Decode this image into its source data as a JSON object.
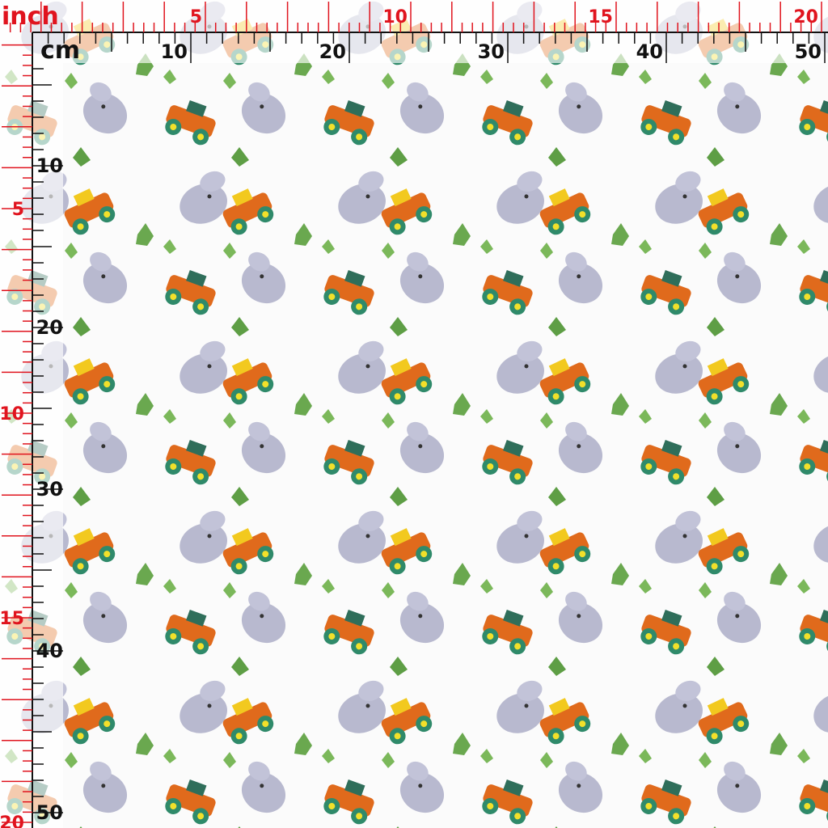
{
  "rulers": {
    "inch_unit": "inch",
    "cm_unit": "cm",
    "top_inch_labels": [
      "5",
      "10",
      "15",
      "20"
    ],
    "top_cm_labels": [
      "10",
      "20",
      "30",
      "40",
      "50"
    ],
    "left_inch_labels": [
      "5",
      "10",
      "15",
      "20"
    ],
    "left_cm_labels": [
      "10",
      "20",
      "30",
      "40",
      "50"
    ]
  }
}
